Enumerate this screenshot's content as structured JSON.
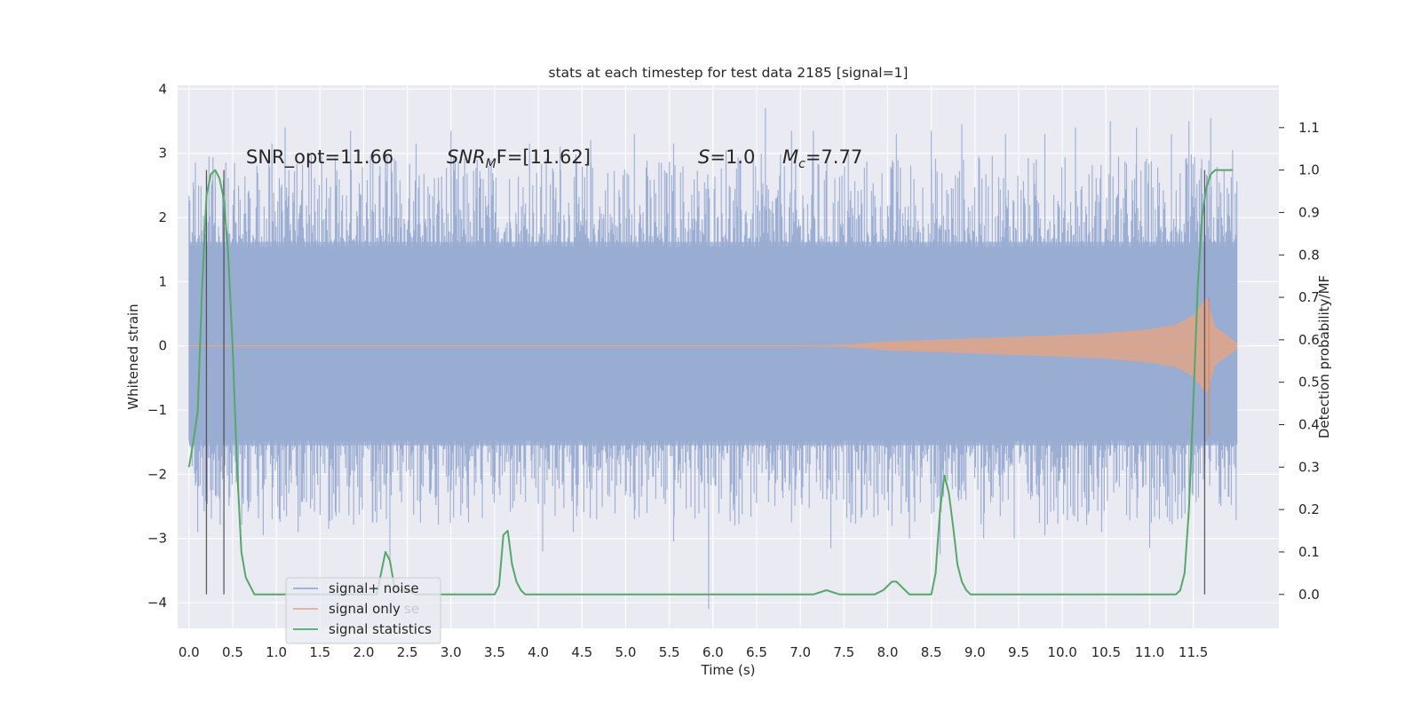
{
  "chart_data": {
    "type": "line",
    "title": "stats at each timestep for test data 2185 [signal=1]",
    "xlabel": "Time (s)",
    "ylabel": "Whitened strain",
    "y2label": "Detection probability/MF",
    "xlim": [
      -0.13,
      12.48
    ],
    "ylim": [
      -4.4,
      4.06
    ],
    "y2lim": [
      -0.08,
      1.2
    ],
    "xticks": [
      0.0,
      0.5,
      1.0,
      1.5,
      2.0,
      2.5,
      3.0,
      3.5,
      4.0,
      4.5,
      5.0,
      5.5,
      6.0,
      6.5,
      7.0,
      7.5,
      8.0,
      8.5,
      9.0,
      9.5,
      10.0,
      10.5,
      11.0,
      11.5
    ],
    "xtick_labels": [
      "0.0",
      "0.5",
      "1.0",
      "1.5",
      "2.0",
      "2.5",
      "3.0",
      "3.5",
      "4.0",
      "4.5",
      "5.0",
      "5.5",
      "6.0",
      "6.5",
      "7.0",
      "7.5",
      "8.0",
      "8.5",
      "9.0",
      "9.5",
      "10.0",
      "10.5",
      "11.0",
      "11.5"
    ],
    "yticks": [
      -4,
      -3,
      -2,
      -1,
      0,
      1,
      2,
      3,
      4
    ],
    "ytick_labels": [
      "−4",
      "−3",
      "−2",
      "−1",
      "0",
      "1",
      "2",
      "3",
      "4"
    ],
    "y2ticks": [
      0.0,
      0.1,
      0.2,
      0.3,
      0.4,
      0.5,
      0.6,
      0.7,
      0.8,
      0.9,
      1.0,
      1.1
    ],
    "y2tick_labels": [
      "0.0",
      "0.1",
      "0.2",
      "0.3",
      "0.4",
      "0.5",
      "0.6",
      "0.7",
      "0.8",
      "0.9",
      "1.0",
      "1.1"
    ],
    "grid": true,
    "legend_position": "lower-left",
    "legend": [
      {
        "label": "signal+ noise",
        "color": "#98abd1"
      },
      {
        "label": "signal only",
        "color": "#dd8452"
      },
      {
        "label": "signal statistics",
        "color": "#55a868"
      }
    ],
    "legend_ghost_text": "se",
    "annotations": {
      "snr_opt": "SNR_opt=11.66",
      "snr_mf_name": "SNR",
      "snr_mf_sub": "M",
      "snr_mf_rest": "F=[11.62]",
      "s_name": "S",
      "s_rest": "=1.0",
      "mc_name": "M",
      "mc_sub": "c",
      "mc_rest": "=7.77"
    },
    "series": [
      {
        "name": "signal+ noise",
        "color": "#98abd1",
        "t_range": [
          0.0,
          12.0
        ],
        "band_upper": 1.62,
        "band_lower": -1.55,
        "peaks_up": [
          [
            0.05,
            2.55
          ],
          [
            0.3,
            2.7
          ],
          [
            0.7,
            2.3
          ],
          [
            0.95,
            3.15
          ],
          [
            1.1,
            3.4
          ],
          [
            1.4,
            3.0
          ],
          [
            1.85,
            3.35
          ],
          [
            2.25,
            3.05
          ],
          [
            2.6,
            3.15
          ],
          [
            3.0,
            3.35
          ],
          [
            3.3,
            2.9
          ],
          [
            3.9,
            3.15
          ],
          [
            4.25,
            3.1
          ],
          [
            4.6,
            3.2
          ],
          [
            5.1,
            3.3
          ],
          [
            5.55,
            3.15
          ],
          [
            6.15,
            3.05
          ],
          [
            6.6,
            3.7
          ],
          [
            6.9,
            3.35
          ],
          [
            7.15,
            3.35
          ],
          [
            7.55,
            3.0
          ],
          [
            8.1,
            3.3
          ],
          [
            8.5,
            3.35
          ],
          [
            8.85,
            3.45
          ],
          [
            9.35,
            3.3
          ],
          [
            9.8,
            3.3
          ],
          [
            10.15,
            3.4
          ],
          [
            10.55,
            3.5
          ],
          [
            10.85,
            3.4
          ],
          [
            11.25,
            3.3
          ],
          [
            11.45,
            3.5
          ],
          [
            11.7,
            3.55
          ],
          [
            11.95,
            3.05
          ]
        ],
        "peaks_down": [
          [
            0.1,
            -2.9
          ],
          [
            0.85,
            -2.95
          ],
          [
            1.25,
            -2.9
          ],
          [
            1.6,
            -2.85
          ],
          [
            2.1,
            -2.75
          ],
          [
            2.3,
            -3.4
          ],
          [
            2.65,
            -2.75
          ],
          [
            3.2,
            -2.75
          ],
          [
            4.05,
            -3.2
          ],
          [
            4.4,
            -2.9
          ],
          [
            5.1,
            -2.7
          ],
          [
            5.55,
            -3.05
          ],
          [
            5.95,
            -4.1
          ],
          [
            6.25,
            -2.8
          ],
          [
            6.9,
            -2.75
          ],
          [
            7.35,
            -3.15
          ],
          [
            8.05,
            -2.8
          ],
          [
            8.25,
            -3.0
          ],
          [
            8.6,
            -3.25
          ],
          [
            9.1,
            -3.0
          ],
          [
            9.45,
            -3.0
          ],
          [
            9.8,
            -2.95
          ],
          [
            10.45,
            -2.9
          ],
          [
            11.0,
            -3.15
          ],
          [
            11.45,
            -2.7
          ],
          [
            11.9,
            -2.35
          ]
        ]
      },
      {
        "name": "signal only",
        "color": "#dd8452",
        "t_range": [
          0.0,
          12.0
        ],
        "envelope": {
          "t": [
            7.0,
            7.5,
            8.0,
            9.0,
            10.0,
            10.5,
            11.0,
            11.3,
            11.5,
            11.65,
            11.75,
            12.0
          ],
          "amp": [
            0.0,
            0.02,
            0.07,
            0.12,
            0.17,
            0.2,
            0.26,
            0.33,
            0.48,
            0.75,
            0.3,
            0.05
          ]
        }
      },
      {
        "name": "signal statistics",
        "color": "#55a868",
        "x": [
          0.0,
          0.05,
          0.1,
          0.15,
          0.2,
          0.25,
          0.3,
          0.35,
          0.4,
          0.45,
          0.5,
          0.55,
          0.6,
          0.65,
          0.75,
          1.0,
          1.5,
          2.0,
          2.1,
          2.15,
          2.2,
          2.25,
          2.3,
          2.35,
          2.4,
          2.5,
          2.6,
          2.8,
          3.0,
          3.5,
          3.55,
          3.6,
          3.65,
          3.7,
          3.75,
          3.8,
          3.85,
          3.9,
          4.0,
          4.1,
          4.25,
          5.0,
          6.0,
          7.0,
          7.15,
          7.3,
          7.45,
          7.6,
          7.75,
          7.85,
          7.95,
          8.05,
          8.1,
          8.15,
          8.2,
          8.25,
          8.3,
          8.4,
          8.5,
          8.55,
          8.6,
          8.65,
          8.7,
          8.75,
          8.8,
          8.85,
          8.9,
          8.95,
          9.1,
          9.5,
          10.0,
          11.0,
          11.3,
          11.35,
          11.4,
          11.45,
          11.5,
          11.55,
          11.6,
          11.65,
          11.7,
          11.75,
          11.8,
          11.85,
          11.9,
          11.95
        ],
        "y": [
          0.3,
          0.36,
          0.43,
          0.72,
          0.94,
          0.99,
          1.0,
          0.98,
          0.93,
          0.8,
          0.58,
          0.3,
          0.1,
          0.04,
          0.0,
          0.0,
          0.0,
          0.0,
          0.0,
          0.0,
          0.05,
          0.1,
          0.08,
          0.02,
          0.01,
          0.01,
          0.0,
          0.0,
          0.0,
          0.0,
          0.02,
          0.14,
          0.15,
          0.07,
          0.03,
          0.01,
          0.0,
          0.0,
          0.0,
          0.0,
          0.0,
          0.0,
          0.0,
          0.0,
          0.0,
          0.01,
          0.0,
          0.0,
          0.0,
          0.0,
          0.01,
          0.03,
          0.03,
          0.02,
          0.01,
          0.0,
          0.0,
          0.0,
          0.0,
          0.05,
          0.2,
          0.28,
          0.24,
          0.16,
          0.07,
          0.03,
          0.01,
          0.0,
          0.0,
          0.0,
          0.0,
          0.0,
          0.0,
          0.01,
          0.05,
          0.2,
          0.45,
          0.72,
          0.89,
          0.96,
          0.99,
          1.0,
          1.0,
          1.0,
          1.0,
          1.0
        ]
      }
    ],
    "vlines": [
      0.2,
      0.4,
      11.63
    ]
  }
}
